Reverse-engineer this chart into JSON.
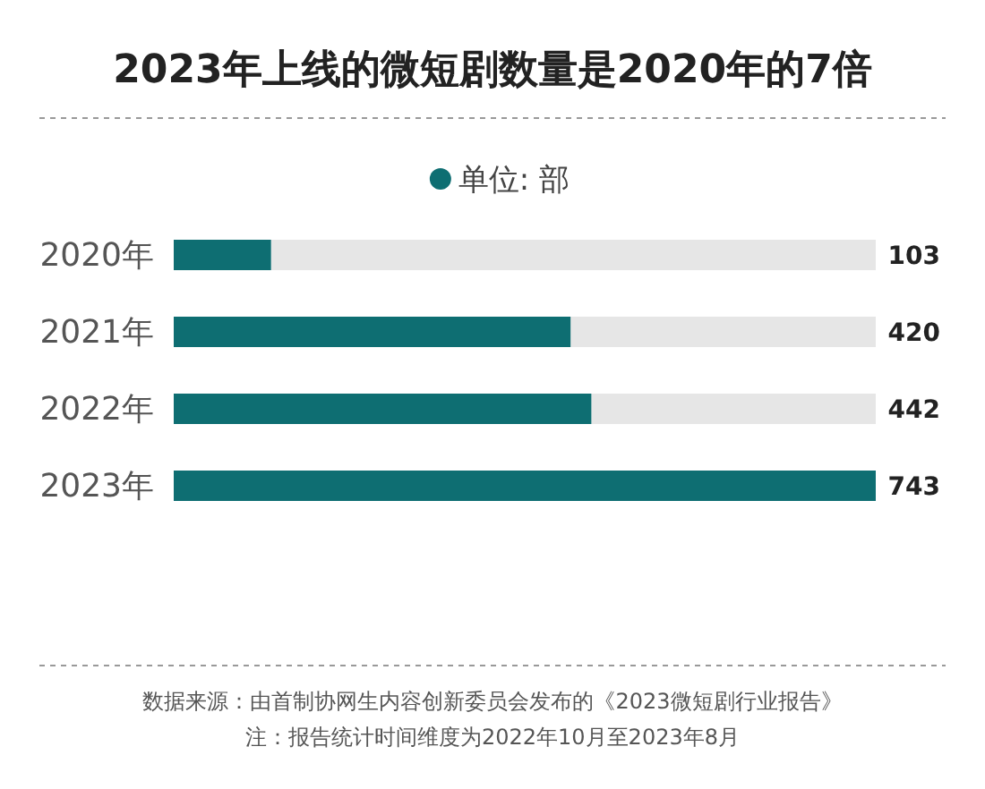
{
  "chart_data": {
    "type": "bar",
    "orientation": "horizontal",
    "title": "2023年上线的微短剧数量是2020年的7倍",
    "categories": [
      "2020年",
      "2021年",
      "2022年",
      "2023年"
    ],
    "series": [
      {
        "name": "单位: 部",
        "color": "#0e6e72",
        "values": [
          103,
          420,
          442,
          743
        ]
      }
    ],
    "data_labels": true,
    "legend": "top",
    "annotations": [
      "数据来源：由首制协网生内容创新委员会发布的《2023微短剧行业报告》",
      "注：报告统计时间维度为2022年10月至2023年8月"
    ]
  }
}
